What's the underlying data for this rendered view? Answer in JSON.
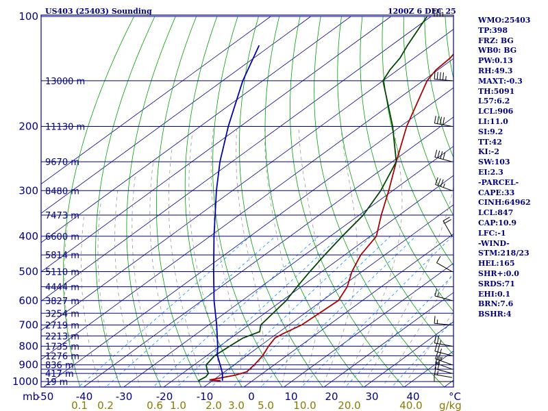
{
  "header": {
    "station": "US403 (25403) Sounding",
    "valid_time": "1200Z  6 DEC 25"
  },
  "colors": {
    "plot_border": "#0000a0",
    "isobar": "#000080",
    "isotherm": "#00008b",
    "dry_adiabat": "#00a000",
    "moist_adiabat": "#999999",
    "mixing_ratio": "#0090ff",
    "temperature": "#aa0000",
    "dewpoint": "#004400",
    "parcel": "#0000aa",
    "text": "#000080",
    "mixing_label": "#8a7a00"
  },
  "chart_data": {
    "type": "skew-t log-p",
    "title": "US403 (25403) Sounding",
    "valid_time": "1200Z  6 DEC 25",
    "x_axis_label": "°C",
    "y_axis_label": "mb",
    "pressure_range_mb": [
      100,
      1050
    ],
    "temperature_range_c": [
      -50,
      50
    ],
    "pressure_labels": [
      100,
      200,
      300,
      400,
      500,
      600,
      700,
      800,
      900,
      1000
    ],
    "temperature_ticks": [
      -50,
      -40,
      -30,
      -20,
      -10,
      0,
      10,
      20,
      30,
      40
    ],
    "isobar_levels": [
      100,
      150,
      200,
      250,
      300,
      350,
      400,
      450,
      500,
      550,
      600,
      650,
      700,
      750,
      800,
      850,
      900,
      925,
      950,
      1000
    ],
    "height_labels": [
      {
        "p": 150,
        "text": "13000 m"
      },
      {
        "p": 200,
        "text": "11130 m"
      },
      {
        "p": 250,
        "text": "9670 m"
      },
      {
        "p": 300,
        "text": "8480 m"
      },
      {
        "p": 350,
        "text": "7473 m"
      },
      {
        "p": 400,
        "text": "6600 m"
      },
      {
        "p": 450,
        "text": "5814 m"
      },
      {
        "p": 500,
        "text": "5110 m"
      },
      {
        "p": 550,
        "text": "4444 m"
      },
      {
        "p": 600,
        "text": "3827 m"
      },
      {
        "p": 650,
        "text": "3254 m"
      },
      {
        "p": 700,
        "text": "2719 m"
      },
      {
        "p": 750,
        "text": "2213 m"
      },
      {
        "p": 800,
        "text": "1735 m"
      },
      {
        "p": 850,
        "text": "1276 m"
      },
      {
        "p": 900,
        "text": "836 m"
      },
      {
        "p": 950,
        "text": "417 m"
      },
      {
        "p": 1000,
        "text": "19 m"
      }
    ],
    "mixing_ratio_labels": [
      "0.1",
      "0.2",
      "0.6",
      "1.0",
      "2.0",
      "3.0",
      "5.0",
      "10.0",
      "20.0",
      "40.0"
    ],
    "mixing_ratio_values": [
      0.1,
      0.2,
      0.6,
      1.0,
      2.0,
      3.0,
      5.0,
      10.0,
      20.0,
      40.0
    ],
    "mixing_ratio_unit": "g/kg",
    "series": [
      {
        "name": "temperature",
        "points": [
          {
            "p": 995,
            "t": -8.0
          },
          {
            "p": 990,
            "t": -11.0
          },
          {
            "p": 960,
            "t": -6.2
          },
          {
            "p": 940,
            "t": -4.5
          },
          {
            "p": 900,
            "t": -5.0
          },
          {
            "p": 850,
            "t": -6.0
          },
          {
            "p": 800,
            "t": -7.8
          },
          {
            "p": 760,
            "t": -9.0
          },
          {
            "p": 740,
            "t": -8.5
          },
          {
            "p": 700,
            "t": -6.8
          },
          {
            "p": 600,
            "t": -6.0
          },
          {
            "p": 550,
            "t": -8.5
          },
          {
            "p": 500,
            "t": -12.5
          },
          {
            "p": 450,
            "t": -16.0
          },
          {
            "p": 400,
            "t": -18.5
          },
          {
            "p": 350,
            "t": -24.5
          },
          {
            "p": 300,
            "t": -31.0
          },
          {
            "p": 250,
            "t": -39.0
          },
          {
            "p": 200,
            "t": -48.5
          },
          {
            "p": 150,
            "t": -59.0
          },
          {
            "p": 140,
            "t": -60.5
          },
          {
            "p": 130,
            "t": -61.0
          },
          {
            "p": 115,
            "t": -63.5
          },
          {
            "p": 100,
            "t": -65.0
          }
        ]
      },
      {
        "name": "dewpoint",
        "points": [
          {
            "p": 995,
            "t": -13.5
          },
          {
            "p": 970,
            "t": -13.0
          },
          {
            "p": 950,
            "t": -13.5
          },
          {
            "p": 930,
            "t": -15.0
          },
          {
            "p": 900,
            "t": -17.0
          },
          {
            "p": 850,
            "t": -18.0
          },
          {
            "p": 800,
            "t": -17.5
          },
          {
            "p": 760,
            "t": -17.0
          },
          {
            "p": 730,
            "t": -15.0
          },
          {
            "p": 700,
            "t": -17.0
          },
          {
            "p": 600,
            "t": -19.0
          },
          {
            "p": 550,
            "t": -21.0
          },
          {
            "p": 500,
            "t": -23.0
          },
          {
            "p": 450,
            "t": -25.0
          },
          {
            "p": 400,
            "t": -27.0
          },
          {
            "p": 350,
            "t": -29.0
          },
          {
            "p": 300,
            "t": -33.0
          },
          {
            "p": 250,
            "t": -39.0
          },
          {
            "p": 200,
            "t": -52.0
          },
          {
            "p": 150,
            "t": -70.0
          },
          {
            "p": 140,
            "t": -72.0
          },
          {
            "p": 130,
            "t": -73.5
          },
          {
            "p": 120,
            "t": -76.0
          },
          {
            "p": 100,
            "t": -81.0
          }
        ]
      },
      {
        "name": "parcel",
        "points": [
          {
            "p": 995,
            "t": -7.5
          },
          {
            "p": 950,
            "t": -10.0
          },
          {
            "p": 900,
            "t": -13.5
          },
          {
            "p": 847,
            "t": -17.5
          },
          {
            "p": 800,
            "t": -20.5
          },
          {
            "p": 700,
            "t": -28.0
          },
          {
            "p": 600,
            "t": -37.0
          },
          {
            "p": 500,
            "t": -47.0
          },
          {
            "p": 400,
            "t": -59.0
          },
          {
            "p": 300,
            "t": -74.0
          },
          {
            "p": 250,
            "t": -83.0
          },
          {
            "p": 200,
            "t": -93.0
          },
          {
            "p": 150,
            "t": -105.0
          },
          {
            "p": 120,
            "t": -113.0
          }
        ]
      }
    ],
    "wind_barbs": [
      {
        "p": 1000,
        "dir": 270,
        "kt": 10
      },
      {
        "p": 975,
        "dir": 280,
        "kt": 15
      },
      {
        "p": 950,
        "dir": 285,
        "kt": 20
      },
      {
        "p": 925,
        "dir": 290,
        "kt": 20
      },
      {
        "p": 900,
        "dir": 290,
        "kt": 25
      },
      {
        "p": 850,
        "dir": 285,
        "kt": 25
      },
      {
        "p": 800,
        "dir": 280,
        "kt": 25
      },
      {
        "p": 700,
        "dir": 275,
        "kt": 15
      },
      {
        "p": 600,
        "dir": 285,
        "kt": 15
      },
      {
        "p": 500,
        "dir": 300,
        "kt": 10
      },
      {
        "p": 400,
        "dir": 330,
        "kt": 20
      },
      {
        "p": 300,
        "dir": 290,
        "kt": 35
      },
      {
        "p": 250,
        "dir": 285,
        "kt": 40
      },
      {
        "p": 200,
        "dir": 280,
        "kt": 40
      },
      {
        "p": 150,
        "dir": 275,
        "kt": 45
      },
      {
        "p": 100,
        "dir": 270,
        "kt": 35
      }
    ]
  },
  "indices": [
    "WMO:25403",
    "TP:398",
    "FRZ: BG",
    "WB0: BG",
    "PW:0.13",
    "RH:49.3",
    "MAXT:-0.3",
    "TH:5091",
    "L57:6.2",
    "LCL:906",
    "LI:11.0",
    "SI:9.2",
    "TT:42",
    "KI:-2",
    "SW:103",
    "EI:2.3",
    "-PARCEL-",
    "CAPE:33",
    "CINH:64962",
    "LCL:847",
    "CAP:10.9",
    "LFC:-1",
    "-WIND-",
    "STM:218/23",
    "HEL:165",
    "SHR+:0.0",
    "SRDS:71",
    "EHI:0.1",
    "BRN:7.6",
    "BSHR:4"
  ]
}
